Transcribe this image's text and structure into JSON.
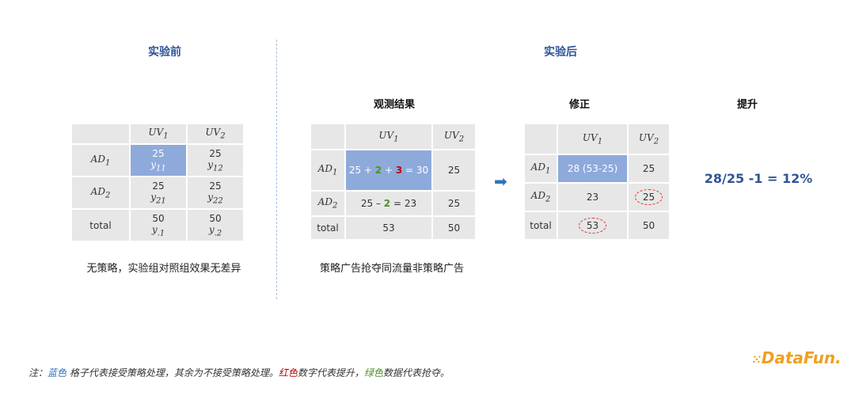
{
  "before": {
    "title": "实验前",
    "table": {
      "col1": "UV",
      "col1_sub": "1",
      "col2": "UV",
      "col2_sub": "2",
      "row1": "AD",
      "row1_sub": "1",
      "row2": "AD",
      "row2_sub": "2",
      "row3": "total",
      "r1c1_val": "25",
      "r1c1_sym": "y",
      "r1c1_sub": "11",
      "r1c2_val": "25",
      "r1c2_sym": "y",
      "r1c2_sub": "12",
      "r2c1_val": "25",
      "r2c1_sym": "y",
      "r2c1_sub": "21",
      "r2c2_val": "25",
      "r2c2_sym": "y",
      "r2c2_sub": "22",
      "r3c1_val": "50",
      "r3c1_sym": "y",
      "r3c1_sub": ".1",
      "r3c2_val": "50",
      "r3c2_sym": "y",
      "r3c2_sub": ".2"
    },
    "caption": "无策略，实验组对照组效果无差异"
  },
  "after": {
    "title": "实验后",
    "observed": {
      "title": "观测结果",
      "col1": "UV",
      "col1_sub": "1",
      "col2": "UV",
      "col2_sub": "2",
      "row1": "AD",
      "row1_sub": "1",
      "row2": "AD",
      "row2_sub": "2",
      "row3": "total",
      "r1c1_a": "25 + ",
      "r1c1_b": "2",
      "r1c1_c": " + ",
      "r1c1_d": "3",
      "r1c1_e": " = 30",
      "r1c2": "25",
      "r2c1_a": "25 – ",
      "r2c1_b": "2",
      "r2c1_c": " = 23",
      "r2c2": "25",
      "r3c1": "53",
      "r3c2": "50",
      "caption": "策略广告抢夺同流量非策略广告"
    },
    "corrected": {
      "title": "修正",
      "col1": "UV",
      "col1_sub": "1",
      "col2": "UV",
      "col2_sub": "2",
      "row1": "AD",
      "row1_sub": "1",
      "row2": "AD",
      "row2_sub": "2",
      "row3": "total",
      "r1c1": "28 (53-25)",
      "r1c2": "25",
      "r2c1": "23",
      "r2c2": "25",
      "r3c1": "53",
      "r3c2": "50"
    },
    "lift": {
      "title": "提升",
      "formula": "28/25 -1 = 12%"
    },
    "arrow": "➡"
  },
  "note": {
    "prefix": "注：",
    "blue": "蓝色",
    "part1": " 格子代表接受策略处理，其余为不接受策略处理。",
    "red": "红色",
    "part2": "数字代表提升，",
    "green": "绿色",
    "part3": "数据代表抢夺。"
  },
  "logo": "DataFun."
}
